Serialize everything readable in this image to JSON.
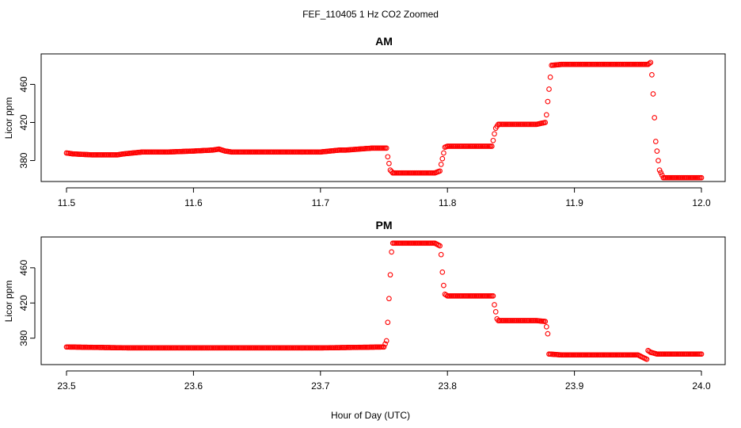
{
  "figure": {
    "title": "FEF_110405  1 Hz CO2 Zoomed",
    "xlabel": "Hour of Day (UTC)"
  },
  "chart_data": [
    {
      "type": "scatter",
      "title": "AM",
      "ylabel": "Licor ppm",
      "xlim": [
        11.5,
        12.0
      ],
      "ylim": [
        358,
        492
      ],
      "xticks": [
        11.5,
        11.6,
        11.7,
        11.8,
        11.9,
        12.0
      ],
      "xtick_labels": [
        "11.5",
        "11.6",
        "11.7",
        "11.8",
        "11.9",
        "12.0"
      ],
      "yticks": [
        380,
        420,
        460
      ],
      "ytick_labels": [
        "380",
        "420",
        "460"
      ],
      "grid": false,
      "marker": "open-circle",
      "color": "#ff0000",
      "series": [
        {
          "x": [
            11.5,
            11.505,
            11.52,
            11.54,
            11.545,
            11.56,
            11.58,
            11.6,
            11.615,
            11.62,
            11.625,
            11.63,
            11.65,
            11.67,
            11.7,
            11.715,
            11.72,
            11.73,
            11.74,
            11.752,
            11.753,
            11.754,
            11.755,
            11.757,
            11.76,
            11.77,
            11.78,
            11.79,
            11.794,
            11.795,
            11.796,
            11.797,
            11.798,
            11.8,
            11.81,
            11.82,
            11.83,
            11.835,
            11.836,
            11.837,
            11.838,
            11.84,
            11.85,
            11.86,
            11.87,
            11.877,
            11.878,
            11.879,
            11.88,
            11.882,
            11.89,
            11.9,
            11.92,
            11.94,
            11.95,
            11.958,
            11.96,
            11.961,
            11.962,
            11.963,
            11.964,
            11.965,
            11.967,
            11.97,
            11.98,
            11.99,
            12.0
          ],
          "y": [
            388,
            387,
            386,
            386,
            387,
            389,
            389,
            390,
            391,
            392,
            390,
            389,
            389,
            389,
            389,
            391,
            391,
            392,
            393,
            393,
            384,
            377,
            370,
            367,
            367,
            367,
            367,
            367,
            369,
            376,
            382,
            388,
            394,
            395,
            395,
            395,
            395,
            395,
            401,
            408,
            414,
            418,
            418,
            418,
            418,
            420,
            428,
            442,
            455,
            480,
            481,
            481,
            481,
            481,
            481,
            481,
            483,
            470,
            450,
            425,
            400,
            390,
            370,
            362,
            362,
            362,
            362
          ]
        }
      ]
    },
    {
      "type": "scatter",
      "title": "PM",
      "ylabel": "Licor ppm",
      "xlim": [
        23.5,
        24.0
      ],
      "ylim": [
        350,
        495
      ],
      "xticks": [
        23.5,
        23.6,
        23.7,
        23.8,
        23.9,
        24.0
      ],
      "xtick_labels": [
        "23.5",
        "23.6",
        "23.7",
        "23.8",
        "23.9",
        "24.0"
      ],
      "yticks": [
        380,
        420,
        460
      ],
      "ytick_labels": [
        "380",
        "420",
        "460"
      ],
      "grid": false,
      "marker": "open-circle",
      "color": "#ff0000",
      "series": [
        {
          "x": [
            23.5,
            23.55,
            23.6,
            23.65,
            23.7,
            23.75,
            23.752,
            23.753,
            23.754,
            23.755,
            23.756,
            23.757,
            23.76,
            23.77,
            23.78,
            23.79,
            23.794,
            23.795,
            23.796,
            23.797,
            23.798,
            23.8,
            23.81,
            23.82,
            23.83,
            23.836,
            23.837,
            23.838,
            23.839,
            23.84,
            23.85,
            23.86,
            23.87,
            23.877,
            23.878,
            23.879,
            23.88,
            23.89,
            23.9,
            23.91,
            23.92,
            23.93,
            23.94,
            23.95,
            23.957,
            23.958,
            23.96,
            23.965,
            23.97,
            23.98,
            23.99,
            24.0
          ],
          "y": [
            370,
            369,
            369,
            369,
            369,
            370,
            377,
            398,
            425,
            452,
            478,
            488,
            488,
            488,
            488,
            488,
            485,
            475,
            455,
            440,
            430,
            428,
            428,
            428,
            428,
            428,
            418,
            410,
            402,
            400,
            400,
            400,
            400,
            399,
            393,
            385,
            362,
            361,
            361,
            361,
            361,
            361,
            361,
            361,
            356,
            366,
            364,
            362,
            362,
            362,
            362,
            362
          ]
        }
      ]
    }
  ]
}
